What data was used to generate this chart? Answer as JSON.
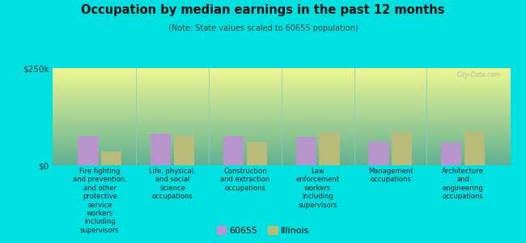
{
  "title": "Occupation by median earnings in the past 12 months",
  "subtitle": "(Note: State values scaled to 60655 population)",
  "categories": [
    "Fire fighting\nand prevention,\nand other\nprotective\nservice\nworkers\nincluding\nsupervisors",
    "Life, physical,\nand social\nscience\noccupations",
    "Construction\nand extraction\noccupations",
    "Law\nenforcement\nworkers\nincluding\nsupervisors",
    "Management\noccupations",
    "Architecture\nand\nengineering\noccupations"
  ],
  "values_60655": [
    75000,
    82000,
    75000,
    72000,
    60000,
    58000
  ],
  "values_illinois": [
    35000,
    78000,
    60000,
    85000,
    85000,
    88000
  ],
  "color_60655": "#b894cc",
  "color_illinois": "#b8bc78",
  "ylim": [
    0,
    250000
  ],
  "yticks": [
    0,
    250000
  ],
  "ytick_labels": [
    "$0",
    "$250k"
  ],
  "background_color": "#00e0e0",
  "legend_labels": [
    "60655",
    "Illinois"
  ],
  "watermark": "City-Data.com"
}
